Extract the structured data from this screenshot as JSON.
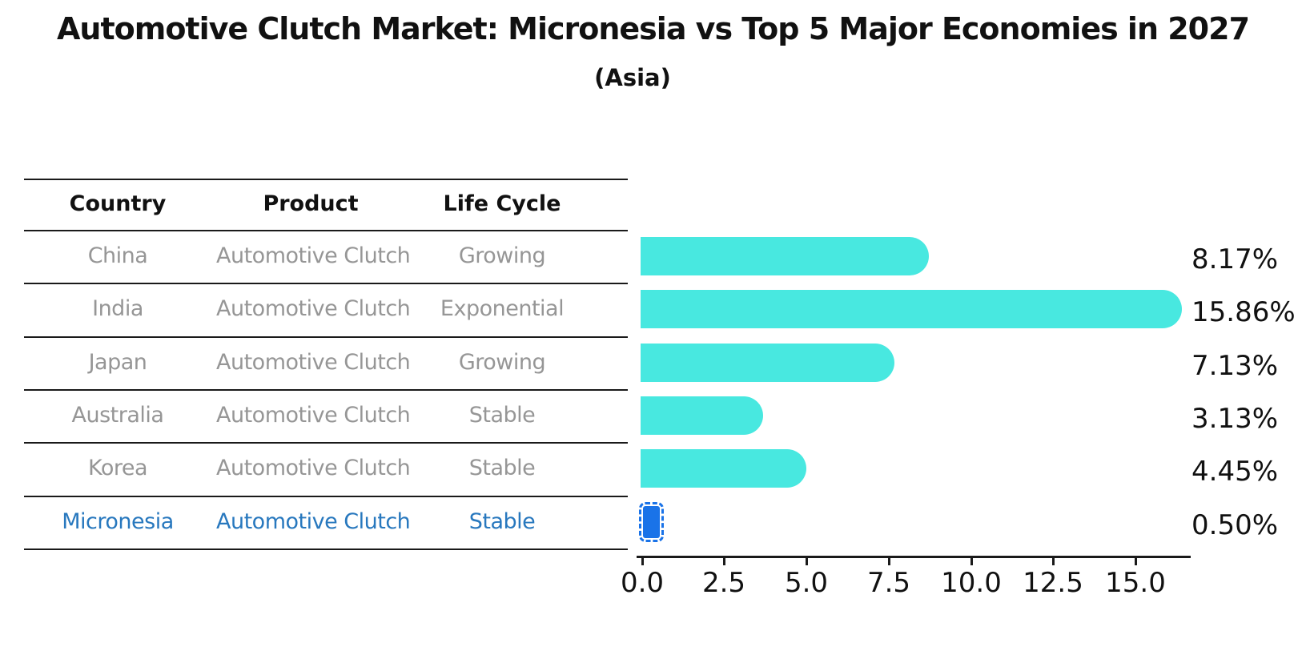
{
  "title": "Automotive Clutch Market: Micronesia vs Top 5 Major Economies in 2027",
  "subtitle": "(Asia)",
  "table": {
    "headers": [
      "Country",
      "Product",
      "Life Cycle"
    ],
    "rows": [
      {
        "country": "China",
        "product": "Automotive Clutch",
        "life_cycle": "Growing",
        "highlighted": false
      },
      {
        "country": "India",
        "product": "Automotive Clutch",
        "life_cycle": "Exponential",
        "highlighted": false
      },
      {
        "country": "Japan",
        "product": "Automotive Clutch",
        "life_cycle": "Growing",
        "highlighted": false
      },
      {
        "country": "Australia",
        "product": "Automotive Clutch",
        "life_cycle": "Stable",
        "highlighted": false
      },
      {
        "country": "Korea",
        "product": "Automotive Clutch",
        "life_cycle": "Stable",
        "highlighted": false
      },
      {
        "country": "Micronesia",
        "product": "Automotive Clutch",
        "life_cycle": "Stable",
        "highlighted": true
      }
    ]
  },
  "chart_data": {
    "type": "bar",
    "orientation": "horizontal",
    "categories": [
      "China",
      "India",
      "Japan",
      "Australia",
      "Korea",
      "Micronesia"
    ],
    "values": [
      8.17,
      15.86,
      7.13,
      3.13,
      4.45,
      0.5
    ],
    "value_labels": [
      "8.17%",
      "15.86%",
      "7.13%",
      "3.13%",
      "4.45%",
      "0.50%"
    ],
    "x_ticks": [
      0.0,
      2.5,
      5.0,
      7.5,
      10.0,
      12.5,
      15.0
    ],
    "xlim": [
      0,
      16.7
    ],
    "grid": false,
    "legend": false,
    "bar_color": "#48e8e0",
    "highlight_color": "#1a73e8",
    "highlight_index": 5,
    "text_color_muted": "#969696",
    "text_color_highlight": "#2878be"
  }
}
